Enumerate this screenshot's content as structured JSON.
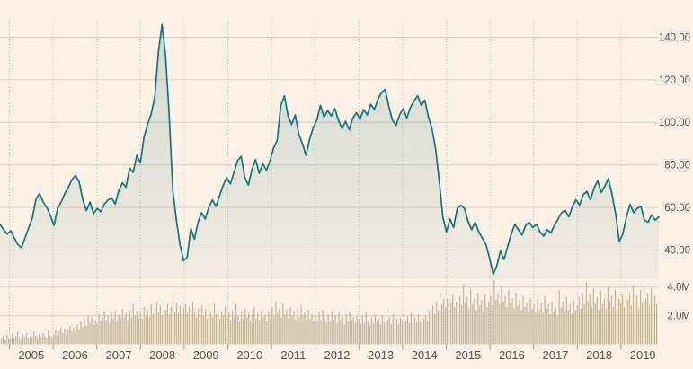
{
  "chart_meta": {
    "background_color": "#fff1e5",
    "line_color": "#0d7680",
    "area_fill_top": "rgba(13,118,128,0.20)",
    "area_fill_bottom": "rgba(13,118,128,0.05)",
    "volume_bar_color": "#c3b39b",
    "grid_h_color": "#d8ccbe",
    "grid_v_color": "#cdc3b6",
    "tick_color": "#9b938a",
    "label_color": "#55504b"
  },
  "chart_data": {
    "type": "line",
    "subtype": "price-area-line-with-volume-bars",
    "title": "",
    "xlabel": "",
    "ylabel": "",
    "x_axis": {
      "tick_labels": [
        "2005",
        "2006",
        "2007",
        "2008",
        "2009",
        "2010",
        "2011",
        "2012",
        "2013",
        "2014",
        "2015",
        "2016",
        "2017",
        "2018",
        "2019"
      ],
      "range": [
        2004.78,
        2019.87
      ],
      "grid": "dotted-vertical"
    },
    "price_pane": {
      "ytick_labels": [
        "140.00",
        "120.00",
        "100.00",
        "80.00",
        "60.00",
        "40.00"
      ],
      "ytick_values": [
        140,
        120,
        100,
        80,
        60,
        40
      ],
      "ylim": [
        26,
        154
      ],
      "legend": "none",
      "values": [
        52,
        49.5,
        47.5,
        49,
        45.5,
        42.5,
        41,
        46,
        50.5,
        55,
        64,
        66.5,
        62.5,
        60,
        56,
        51.5,
        59.5,
        62.5,
        66.5,
        69.5,
        73,
        75,
        72,
        63.5,
        58.5,
        62.5,
        57,
        59.5,
        58,
        61.5,
        63.5,
        64.5,
        61.5,
        68,
        71.5,
        69.5,
        78.5,
        76.5,
        84.5,
        81,
        93,
        99,
        104,
        112,
        133,
        146,
        131,
        103,
        68,
        54,
        42.5,
        35,
        36.5,
        50,
        45,
        53,
        57.5,
        54.5,
        60,
        63.5,
        60.5,
        65.5,
        70.5,
        74,
        71,
        76.5,
        82,
        84,
        74,
        70.5,
        78,
        82.5,
        76,
        80.5,
        77.5,
        82,
        88,
        91.5,
        108,
        112.5,
        103,
        99,
        103.5,
        94.5,
        90,
        84.5,
        92,
        97.5,
        101,
        108,
        102.5,
        105.5,
        103,
        106.5,
        101,
        97,
        100.5,
        96.5,
        102,
        104.5,
        101.5,
        106,
        103.5,
        108.5,
        106,
        111,
        114,
        115.5,
        107.5,
        101,
        98.5,
        103.5,
        106.5,
        102,
        107,
        110,
        112.5,
        108,
        110.5,
        102.5,
        97,
        87.5,
        72.5,
        55.5,
        48.5,
        54.5,
        50.5,
        59.5,
        61,
        59.5,
        53.5,
        49.5,
        53,
        48.5,
        45.5,
        42.5,
        36,
        28.5,
        32.5,
        39.5,
        35.5,
        41.5,
        47.5,
        52,
        49.5,
        47,
        51.5,
        53,
        50.5,
        52,
        48.5,
        46.5,
        49.5,
        48,
        51.5,
        54.5,
        57.5,
        58.5,
        55.5,
        60.5,
        63.5,
        61,
        66,
        67.5,
        63.5,
        69,
        72.5,
        67,
        70,
        73.5,
        66,
        57,
        44,
        47.5,
        55.5,
        61.5,
        57.5,
        59.5,
        60.5,
        54,
        53,
        56.5,
        54,
        55.5
      ]
    },
    "volume_pane": {
      "ytick_labels": [
        "4.0M",
        "2.0M"
      ],
      "ytick_values": [
        4.0,
        2.0
      ],
      "ylim": [
        0,
        4.6
      ],
      "unit": "M",
      "values": [
        0.4,
        0.6,
        0.3,
        0.7,
        0.4,
        0.5,
        0.8,
        0.4,
        0.6,
        0.9,
        0.5,
        0.3,
        0.7,
        0.5,
        0.8,
        0.4,
        0.6,
        0.5,
        0.9,
        0.6,
        0.4,
        0.7,
        0.5,
        0.8,
        0.6,
        0.4,
        0.9,
        0.6,
        0.5,
        0.7,
        1.0,
        0.6,
        0.9,
        1.2,
        0.8,
        1.1,
        0.7,
        1.0,
        1.3,
        0.9,
        1.2,
        0.8,
        1.4,
        1.0,
        1.6,
        1.2,
        1.8,
        1.3,
        2.0,
        1.5,
        1.9,
        1.4,
        1.7,
        1.5,
        2.1,
        1.6,
        1.9,
        2.3,
        1.7,
        2.0,
        1.5,
        2.2,
        1.8,
        2.4,
        1.6,
        2.1,
        1.8,
        2.5,
        1.9,
        2.2,
        1.6,
        2.4,
        1.9,
        2.8,
        2.0,
        2.3,
        1.8,
        2.2,
        1.8,
        2.6,
        2.0,
        2.4,
        1.9,
        2.8,
        2.1,
        2.5,
        3.0,
        2.2,
        2.7,
        2.0,
        3.2,
        2.4,
        2.8,
        2.1,
        2.6,
        3.4,
        2.3,
        2.9,
        2.2,
        2.7,
        2.1,
        2.5,
        2.8,
        2.2,
        2.6,
        2.0,
        3.0,
        2.3,
        1.9,
        2.5,
        2.1,
        2.7,
        2.0,
        2.4,
        1.8,
        2.6,
        2.2,
        1.9,
        2.8,
        2.1,
        2.4,
        1.8,
        2.3,
        2.0,
        2.6,
        1.9,
        2.2,
        1.7,
        2.4,
        1.9,
        2.8,
        2.0,
        1.6,
        2.3,
        1.8,
        2.5,
        1.9,
        2.2,
        1.6,
        2.0,
        2.6,
        1.8,
        2.2,
        1.7,
        2.4,
        1.9,
        2.1,
        1.6,
        2.3,
        1.8,
        2.6,
        2.0,
        3.0,
        2.2,
        2.5,
        1.9,
        2.8,
        2.1,
        2.4,
        1.8,
        2.6,
        2.0,
        2.3,
        1.7,
        2.5,
        1.9,
        2.7,
        2.0,
        2.2,
        1.7,
        2.4,
        1.8,
        2.1,
        1.6,
        2.0,
        1.6,
        2.2,
        1.7,
        2.4,
        1.8,
        1.5,
        2.1,
        1.6,
        2.3,
        1.7,
        2.0,
        1.5,
        2.2,
        1.7,
        1.9,
        1.4,
        2.1,
        1.6,
        2.2,
        1.7,
        1.9,
        1.5,
        2.0,
        1.8,
        1.4,
        2.0,
        1.5,
        2.2,
        1.6,
        1.3,
        1.9,
        1.5,
        2.1,
        1.6,
        1.8,
        1.4,
        2.0,
        1.5,
        2.3,
        1.7,
        1.9,
        1.4,
        2.1,
        1.6,
        1.8,
        1.4,
        1.9,
        1.7,
        2.1,
        1.6,
        2.0,
        1.5,
        2.2,
        1.7,
        1.9,
        1.5,
        2.1,
        1.6,
        2.3,
        1.8,
        2.0,
        1.6,
        2.4,
        1.9,
        2.7,
        2.1,
        3.0,
        2.4,
        3.6,
        2.8,
        3.2,
        2.6,
        3.2,
        2.4,
        2.9,
        3.5,
        2.6,
        3.0,
        2.3,
        3.4,
        2.7,
        4.2,
        2.9,
        3.3,
        2.5,
        3.8,
        2.8,
        3.2,
        2.4,
        3.6,
        2.7,
        3.1,
        2.3,
        3.5,
        2.6,
        3.0,
        3.4,
        2.7,
        4.5,
        3.1,
        3.6,
        2.8,
        4.1,
        3.0,
        3.4,
        2.6,
        3.8,
        2.9,
        3.2,
        2.5,
        3.6,
        2.7,
        3.1,
        2.4,
        3.4,
        2.6,
        2.9,
        2.3,
        3.2,
        2.5,
        2.8,
        2.2,
        3.2,
        2.4,
        2.9,
        2.2,
        3.4,
        2.5,
        2.8,
        2.1,
        3.0,
        2.3,
        2.6,
        2.0,
        3.8,
        2.6,
        3.0,
        2.2,
        3.3,
        2.4,
        2.8,
        2.1,
        3.1,
        2.4,
        2.7,
        3.3,
        2.5,
        3.6,
        2.8,
        4.3,
        3.0,
        3.5,
        2.6,
        3.9,
        2.9,
        3.3,
        2.4,
        3.7,
        2.8,
        3.2,
        2.5,
        4.0,
        3.0,
        3.4,
        2.6,
        3.8,
        2.8,
        3.2,
        2.9,
        3.5,
        2.6,
        4.4,
        3.1,
        3.6,
        2.7,
        4.1,
        3.0,
        3.4,
        2.5,
        3.8,
        2.9,
        4.2,
        3.2,
        3.6,
        2.7,
        3.9,
        3.0,
        3.4,
        2.8
      ]
    }
  }
}
